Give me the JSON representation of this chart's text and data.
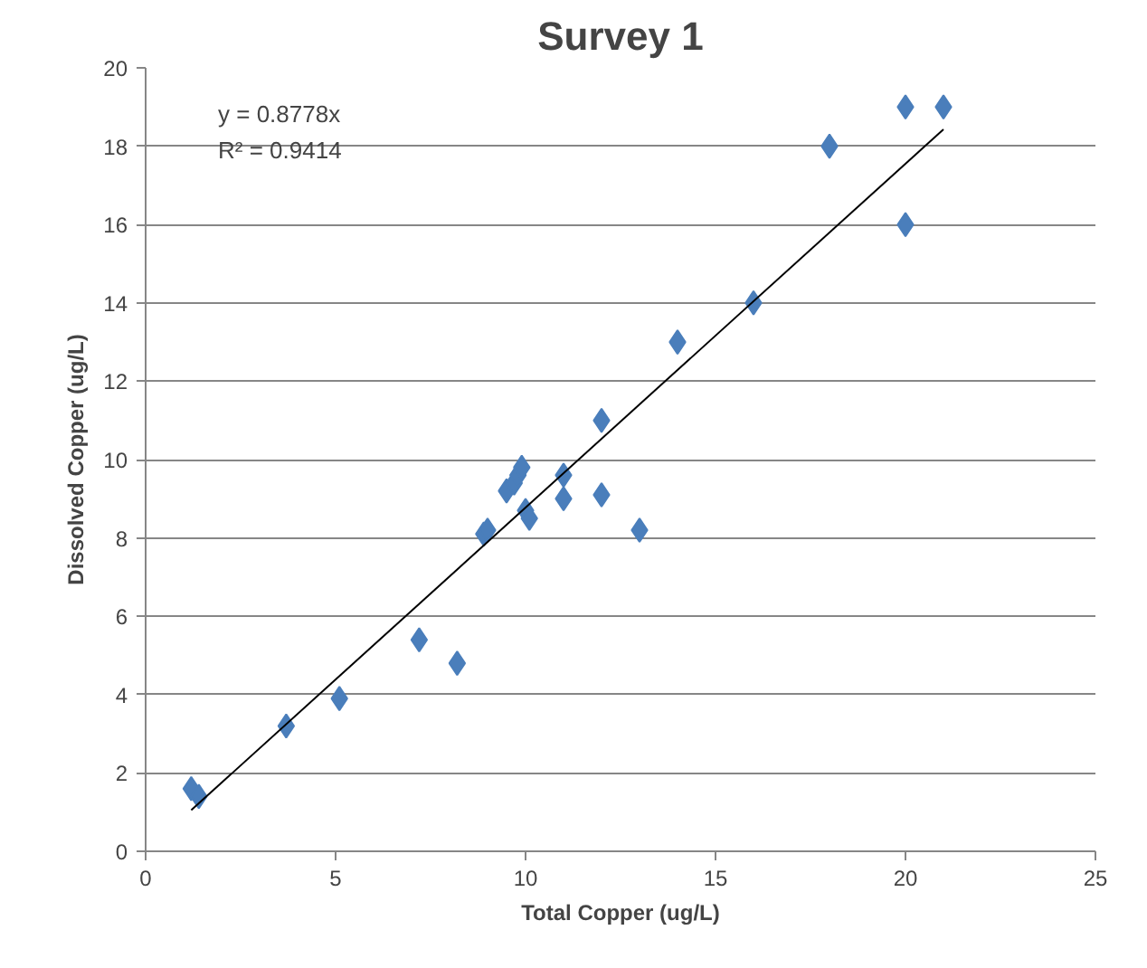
{
  "chart_data": {
    "type": "scatter",
    "title": "Survey 1",
    "xlabel": "Total Copper (ug/L)",
    "ylabel": "Dissolved Copper (ug/L)",
    "xlim": [
      0,
      25
    ],
    "xticks": [
      0,
      5,
      10,
      15,
      20,
      25
    ],
    "ylim": [
      0,
      20
    ],
    "yticks": [
      0,
      2,
      4,
      6,
      8,
      10,
      12,
      14,
      16,
      18,
      20
    ],
    "grid": "y",
    "marker": "diamond",
    "annotations": [
      "y = 0.8778x",
      "R² = 0.9414"
    ],
    "series": [
      {
        "color": "#4a7ebb",
        "x": [
          1.2,
          1.4,
          3.7,
          5.1,
          7.2,
          8.2,
          8.9,
          9.0,
          9.5,
          9.7,
          9.8,
          9.9,
          10.0,
          10.1,
          11,
          11,
          12,
          12,
          13,
          14,
          16,
          18,
          20,
          20,
          21
        ],
        "values": [
          1.6,
          1.4,
          3.2,
          3.9,
          5.4,
          4.8,
          8.1,
          8.2,
          9.2,
          9.4,
          9.6,
          9.8,
          8.7,
          8.5,
          9.6,
          9.0,
          11,
          9.1,
          8.2,
          13,
          14,
          18,
          19,
          16,
          19
        ]
      },
      {
        "type": "line",
        "marker": "none",
        "color": "#000000",
        "x": [
          1.2,
          21
        ],
        "values": [
          1.05,
          18.43
        ]
      }
    ]
  }
}
